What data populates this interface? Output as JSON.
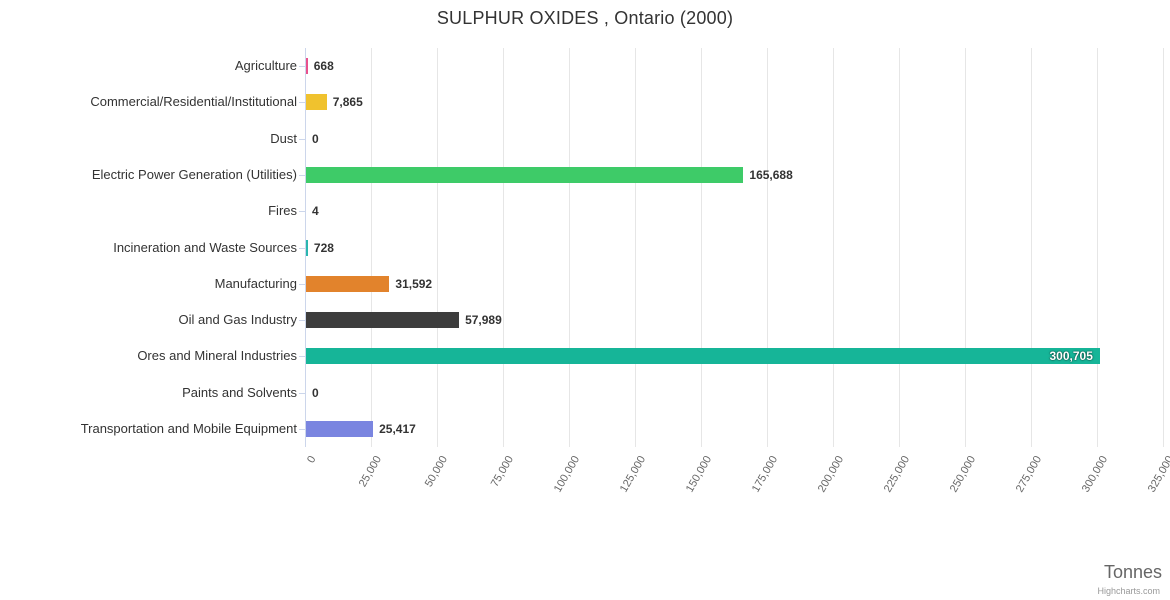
{
  "title": "SULPHUR OXIDES , Ontario (2000)",
  "credits": "Highcharts.com",
  "chart_data": {
    "type": "bar",
    "orientation": "horizontal",
    "title": "SULPHUR OXIDES , Ontario (2000)",
    "xlabel": "Tonnes",
    "ylabel": "",
    "xlim": [
      0,
      325000
    ],
    "tick_interval": 25000,
    "tick_labels": [
      "0",
      "25,000",
      "50,000",
      "75,000",
      "100,000",
      "125,000",
      "150,000",
      "175,000",
      "200,000",
      "225,000",
      "250,000",
      "275,000",
      "300,000",
      "325,000"
    ],
    "grid": true,
    "legend": "none",
    "categories": [
      "Agriculture",
      "Commercial/Residential/Institutional",
      "Dust",
      "Electric Power Generation (Utilities)",
      "Fires",
      "Incineration and Waste Sources",
      "Manufacturing",
      "Oil and Gas Industry",
      "Ores and Mineral Industries",
      "Paints and Solvents",
      "Transportation and Mobile Equipment"
    ],
    "values": [
      668,
      7865,
      0,
      165688,
      4,
      728,
      31592,
      57989,
      300705,
      0,
      25417
    ],
    "value_labels": [
      "668",
      "7,865",
      "0",
      "165,688",
      "4",
      "728",
      "31,592",
      "57,989",
      "300,705",
      "0",
      "25,417"
    ],
    "colors": [
      "#e8518d",
      "#f0c22e",
      "#8d8d8d",
      "#3ecb68",
      "#59b8e8",
      "#2ab6af",
      "#e2832c",
      "#3d3d3d",
      "#16b598",
      "#8d8d8d",
      "#7a85e0"
    ]
  }
}
